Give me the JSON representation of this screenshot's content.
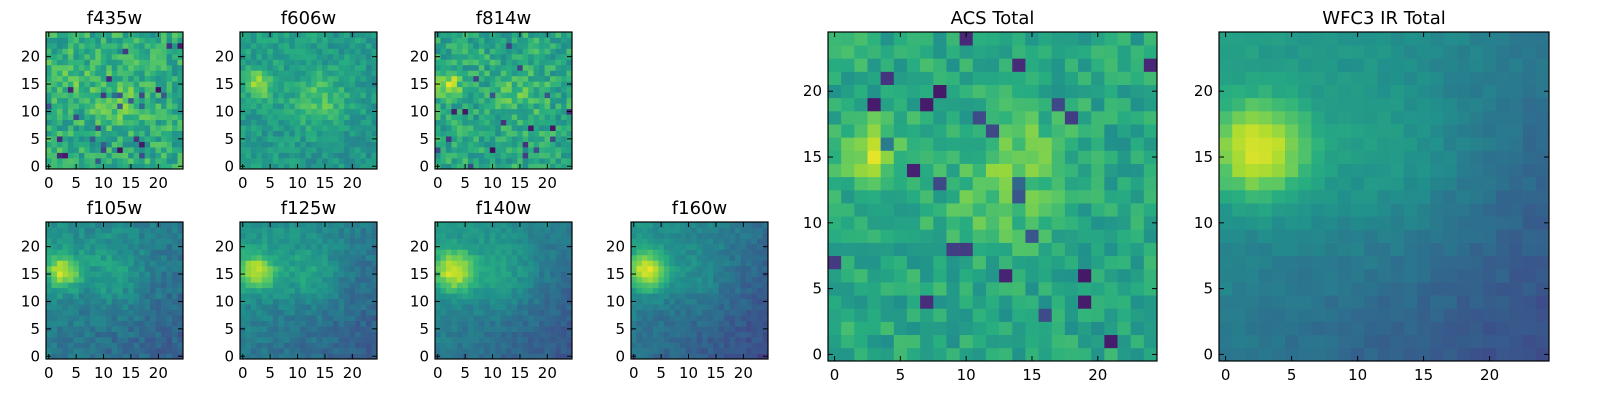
{
  "figure": {
    "background": "#ffffff",
    "colormap": "viridis",
    "colormap_stops": [
      "#440154",
      "#472d7b",
      "#3b528b",
      "#2c728e",
      "#21918c",
      "#28ae80",
      "#5ec962",
      "#addc30",
      "#fde725"
    ]
  },
  "chart_data": [
    {
      "type": "heatmap",
      "title": "f435w",
      "grid_size": [
        25,
        25
      ],
      "xlim": [
        -0.5,
        24.5
      ],
      "ylim": [
        -0.5,
        24.5
      ],
      "xticks": [
        0,
        5,
        10,
        15,
        20
      ],
      "yticks": [
        0,
        5,
        10,
        15,
        20
      ],
      "value_range": [
        0,
        1
      ],
      "sources": [
        {
          "x": 3,
          "y": 15,
          "amp": 0.08,
          "sigma": 3
        },
        {
          "x": 13,
          "y": 12,
          "amp": 0.1,
          "sigma": 3
        }
      ],
      "background": {
        "base": 0.62,
        "gradient": 0.0,
        "noise": 0.14,
        "noise_pattern": 1
      }
    },
    {
      "type": "heatmap",
      "title": "f606w",
      "grid_size": [
        25,
        25
      ],
      "xlim": [
        -0.5,
        24.5
      ],
      "ylim": [
        -0.5,
        24.5
      ],
      "xticks": [
        0,
        5,
        10,
        15,
        20
      ],
      "yticks": [
        0,
        5,
        10,
        15,
        20
      ],
      "value_range": [
        0,
        1
      ],
      "sources": [
        {
          "x": 3,
          "y": 15,
          "amp": 0.3,
          "sigma": 1.8
        },
        {
          "x": 14,
          "y": 12,
          "amp": 0.18,
          "sigma": 3.5
        }
      ],
      "background": {
        "base": 0.55,
        "gradient": 0.05,
        "noise": 0.09,
        "noise_pattern": 2
      }
    },
    {
      "type": "heatmap",
      "title": "f814w",
      "grid_size": [
        25,
        25
      ],
      "xlim": [
        -0.5,
        24.5
      ],
      "ylim": [
        -0.5,
        24.5
      ],
      "xticks": [
        0,
        5,
        10,
        15,
        20
      ],
      "yticks": [
        0,
        5,
        10,
        15,
        20
      ],
      "value_range": [
        0,
        1
      ],
      "sources": [
        {
          "x": 2,
          "y": 15,
          "amp": 0.3,
          "sigma": 1.6
        },
        {
          "x": 15,
          "y": 13,
          "amp": 0.1,
          "sigma": 3
        }
      ],
      "background": {
        "base": 0.6,
        "gradient": 0.0,
        "noise": 0.13,
        "noise_pattern": 3
      }
    },
    {
      "type": "heatmap",
      "title": "f105w",
      "grid_size": [
        25,
        25
      ],
      "xlim": [
        -0.5,
        24.5
      ],
      "ylim": [
        -0.5,
        24.5
      ],
      "xticks": [
        0,
        5,
        10,
        15,
        20
      ],
      "yticks": [
        0,
        5,
        10,
        15,
        20
      ],
      "value_range": [
        0,
        1
      ],
      "sources": [
        {
          "x": 2.5,
          "y": 15.5,
          "amp": 0.45,
          "sigma": 2.2
        },
        {
          "x": 12,
          "y": 15,
          "amp": 0.15,
          "sigma": 4
        }
      ],
      "background": {
        "base": 0.45,
        "gradient": 0.22,
        "noise": 0.07,
        "noise_pattern": 4
      }
    },
    {
      "type": "heatmap",
      "title": "f125w",
      "grid_size": [
        25,
        25
      ],
      "xlim": [
        -0.5,
        24.5
      ],
      "ylim": [
        -0.5,
        24.5
      ],
      "xticks": [
        0,
        5,
        10,
        15,
        20
      ],
      "yticks": [
        0,
        5,
        10,
        15,
        20
      ],
      "value_range": [
        0,
        1
      ],
      "sources": [
        {
          "x": 2.5,
          "y": 15.5,
          "amp": 0.42,
          "sigma": 2.4
        },
        {
          "x": 12,
          "y": 15,
          "amp": 0.15,
          "sigma": 4
        }
      ],
      "background": {
        "base": 0.46,
        "gradient": 0.25,
        "noise": 0.06,
        "noise_pattern": 5
      }
    },
    {
      "type": "heatmap",
      "title": "f140w",
      "grid_size": [
        25,
        25
      ],
      "xlim": [
        -0.5,
        24.5
      ],
      "ylim": [
        -0.5,
        24.5
      ],
      "xticks": [
        0,
        5,
        10,
        15,
        20
      ],
      "yticks": [
        0,
        5,
        10,
        15,
        20
      ],
      "value_range": [
        0,
        1
      ],
      "sources": [
        {
          "x": 3,
          "y": 15.5,
          "amp": 0.45,
          "sigma": 2.6
        },
        {
          "x": 12,
          "y": 15,
          "amp": 0.14,
          "sigma": 4.5
        }
      ],
      "background": {
        "base": 0.46,
        "gradient": 0.28,
        "noise": 0.05,
        "noise_pattern": 6
      }
    },
    {
      "type": "heatmap",
      "title": "f160w",
      "grid_size": [
        25,
        25
      ],
      "xlim": [
        -0.5,
        24.5
      ],
      "ylim": [
        -0.5,
        24.5
      ],
      "xticks": [
        0,
        5,
        10,
        15,
        20
      ],
      "yticks": [
        0,
        5,
        10,
        15,
        20
      ],
      "value_range": [
        0,
        1
      ],
      "sources": [
        {
          "x": 2.5,
          "y": 15.5,
          "amp": 0.5,
          "sigma": 2.5
        },
        {
          "x": 12,
          "y": 15,
          "amp": 0.1,
          "sigma": 4
        }
      ],
      "background": {
        "base": 0.43,
        "gradient": 0.3,
        "noise": 0.05,
        "noise_pattern": 7
      }
    },
    {
      "type": "heatmap",
      "title": "ACS Total",
      "grid_size": [
        25,
        25
      ],
      "xlim": [
        -0.5,
        24.5
      ],
      "ylim": [
        -0.5,
        24.5
      ],
      "xticks": [
        0,
        5,
        10,
        15,
        20
      ],
      "yticks": [
        0,
        5,
        10,
        15,
        20
      ],
      "value_range": [
        0,
        1
      ],
      "sources": [
        {
          "x": 3,
          "y": 15.5,
          "amp": 0.3,
          "sigma": 1.5
        },
        {
          "x": 13,
          "y": 12.5,
          "amp": 0.16,
          "sigma": 3
        },
        {
          "x": 15,
          "y": 16,
          "amp": 0.1,
          "sigma": 2
        }
      ],
      "background": {
        "base": 0.6,
        "gradient": 0.03,
        "noise": 0.1,
        "noise_pattern": 8
      }
    },
    {
      "type": "heatmap",
      "title": "WFC3 IR Total",
      "grid_size": [
        25,
        25
      ],
      "xlim": [
        -0.5,
        24.5
      ],
      "ylim": [
        -0.5,
        24.5
      ],
      "xticks": [
        0,
        5,
        10,
        15,
        20
      ],
      "yticks": [
        0,
        5,
        10,
        15,
        20
      ],
      "value_range": [
        0,
        1
      ],
      "sources": [
        {
          "x": 2.5,
          "y": 15.5,
          "amp": 0.46,
          "sigma": 2.6
        },
        {
          "x": 12,
          "y": 15,
          "amp": 0.12,
          "sigma": 4.5
        }
      ],
      "background": {
        "base": 0.47,
        "gradient": 0.34,
        "noise": 0.03,
        "noise_pattern": 9
      }
    }
  ]
}
